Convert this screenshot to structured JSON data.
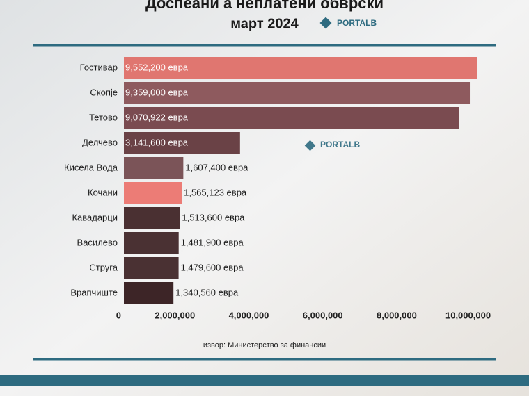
{
  "chart_data": {
    "type": "hbar",
    "title": "Доспеани а неплатени обврски",
    "subtitle": "март 2024",
    "logo": "PORTALB",
    "source": "извор: Министерство за финансии",
    "categories": [
      "Гостивар",
      "Скопје",
      "Тетово",
      "Делчево",
      "Кисела Вода",
      "Кочани",
      "Кавадарци",
      "Василево",
      "Струга",
      "Врапчиште"
    ],
    "values": [
      9552200,
      9359000,
      9070922,
      3141600,
      1607400,
      1565123,
      1513600,
      1481900,
      1479600,
      1340560
    ],
    "value_labels": [
      "9,552,200 евра",
      "9,359,000 евра",
      "9,070,922 евра",
      "3,141,600 евра",
      "1,607,400 евра",
      "1,565,123 евра",
      "1,513,600 евра",
      "1,481,900 евра",
      "1,479,600 евра",
      "1,340,560 евра"
    ],
    "colors": [
      "#e07670",
      "#8e5a5e",
      "#7a4b50",
      "#6a4246",
      "#7b5458",
      "#ec7c76",
      "#4a3032",
      "#4a3133",
      "#4a3133",
      "#3d2527"
    ],
    "xlim": [
      0,
      10300000
    ],
    "xticks": [
      0,
      {
        "value": 2000000,
        "label": "2,000,000"
      },
      {
        "value": 4000000,
        "label": "4,000,000"
      },
      {
        "value": 6000000,
        "label": "6,000,000"
      },
      {
        "value": 8000000,
        "label": "8,000,000"
      },
      {
        "value": 10000000,
        "label": "10,000,000"
      }
    ]
  }
}
